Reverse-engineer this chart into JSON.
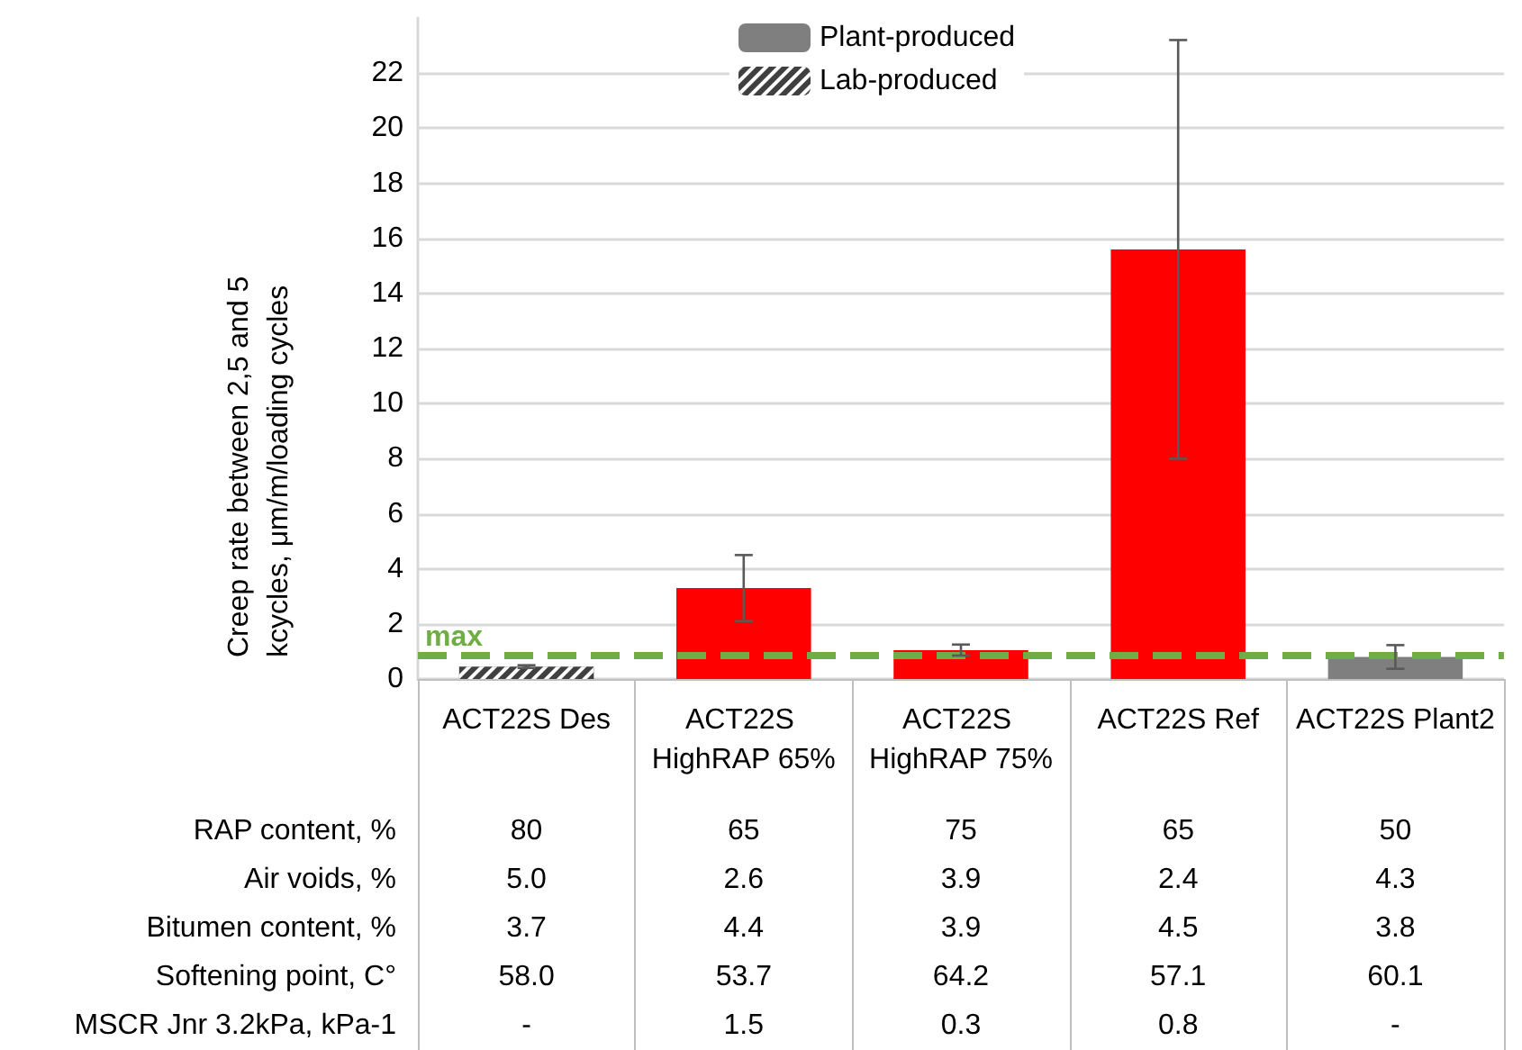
{
  "chart_data": {
    "type": "bar",
    "ylabel": "Creep rate between 2,5 and 5 kcycles, μm/m/loading cycles",
    "categories": [
      "ACT22S Des",
      "ACT22S HighRAP 65%",
      "ACT22S HighRAP 75%",
      "ACT22S Ref",
      "ACT22S Plant2"
    ],
    "series": [
      {
        "name": "Plant-produced",
        "color": "#7f7f7f",
        "colors": [
          null,
          "#ff0000",
          "#ff0000",
          "#ff0000",
          "#7f7f7f"
        ],
        "values": [
          null,
          3.3,
          1.05,
          15.6,
          0.8
        ],
        "errors": [
          null,
          1.2,
          0.2,
          7.6,
          0.43
        ]
      },
      {
        "name": "Lab-produced",
        "color": "#404040",
        "values": [
          0.45,
          null,
          null,
          null,
          null
        ],
        "errors": [
          0.05,
          null,
          null,
          null,
          null
        ]
      }
    ],
    "ylim": [
      0,
      24
    ],
    "yticks": [
      0,
      2,
      4,
      6,
      8,
      10,
      12,
      14,
      16,
      18,
      20,
      22
    ],
    "grid": "y",
    "legend": "top",
    "ref_lines": [
      {
        "axis": "y",
        "value": 0.85,
        "label": "max",
        "color": "#70ad47",
        "line_style": "dashed"
      }
    ],
    "annotations": [
      "RAP content, %",
      "80",
      "65",
      "75",
      "65",
      "50",
      "Air voids, %",
      "5.0",
      "2.6",
      "3.9",
      "2.4",
      "4.3",
      "Bitumen content, %",
      "3.7",
      "4.4",
      "3.9",
      "4.5",
      "3.8",
      "Softening point, C°",
      "58.0",
      "53.7",
      "64.2",
      "57.1",
      "60.1",
      "MSCR Jnr 3.2kPa, kPa-1",
      "-",
      "1.5",
      "0.3",
      "0.8",
      "-"
    ]
  }
}
